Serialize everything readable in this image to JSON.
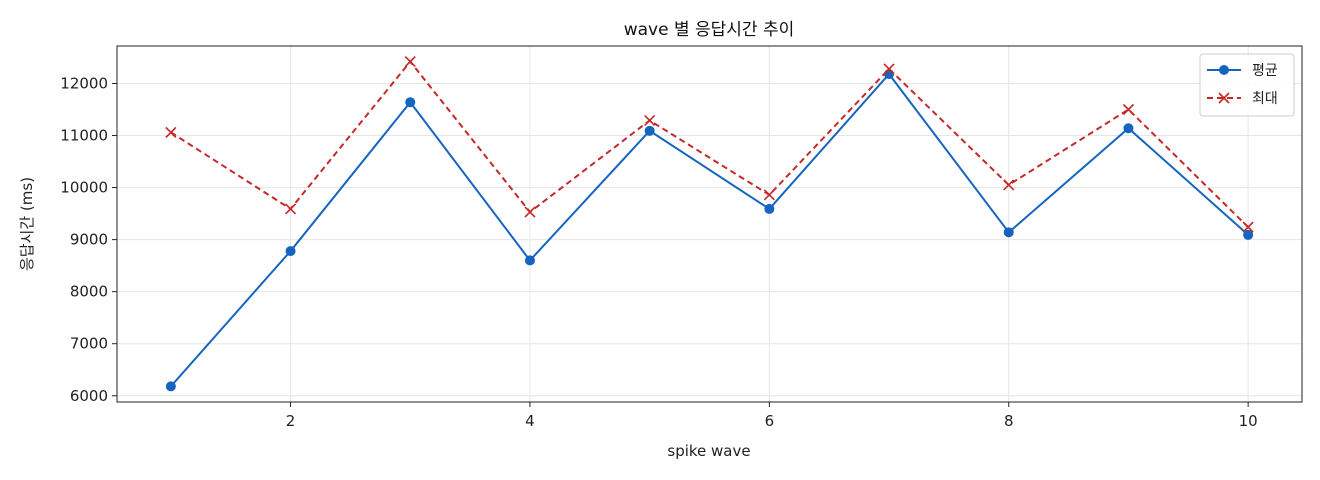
{
  "chart_data": {
    "type": "line",
    "title": "wave 별 응답시간 추이",
    "xlabel": "spike wave",
    "ylabel": "응답시간 (ms)",
    "xlim": [
      0.55,
      10.45
    ],
    "ylim": [
      5880,
      12720
    ],
    "x_ticks": [
      2,
      4,
      6,
      8,
      10
    ],
    "y_ticks": [
      6000,
      7000,
      8000,
      9000,
      10000,
      11000,
      12000
    ],
    "grid": true,
    "legend_position": "top-right",
    "x": [
      1,
      2,
      3,
      4,
      5,
      6,
      7,
      8,
      9,
      10
    ],
    "series": [
      {
        "name": "평균",
        "values": [
          6180,
          8780,
          11640,
          8600,
          11090,
          9590,
          12180,
          9140,
          11140,
          9090
        ],
        "color": "#1565c0",
        "line_style": "solid",
        "marker": "circle"
      },
      {
        "name": "최대",
        "values": [
          11060,
          9590,
          12420,
          9530,
          11290,
          9860,
          12280,
          10050,
          11500,
          9240
        ],
        "color": "#c62828",
        "line_style": "dashed",
        "marker": "x"
      }
    ]
  }
}
